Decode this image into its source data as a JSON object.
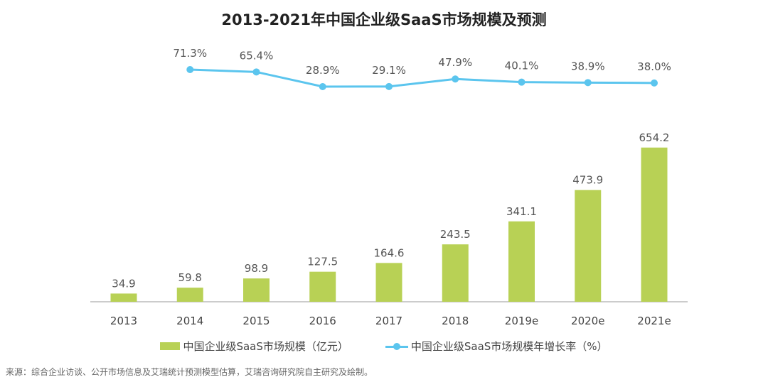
{
  "title": "2013-2021年中国企业级SaaS市场规模及预测",
  "chart_data": {
    "type": "bar+line",
    "title": "2013-2021年中国企业级SaaS市场规模及预测",
    "categories": [
      "2013",
      "2014",
      "2015",
      "2016",
      "2017",
      "2018",
      "2019e",
      "2020e",
      "2021e"
    ],
    "series": [
      {
        "name": "中国企业级SaaS市场规模（亿元）",
        "type": "bar",
        "color": "#b8d155",
        "values": [
          34.9,
          59.8,
          98.9,
          127.5,
          164.6,
          243.5,
          341.1,
          473.9,
          654.2
        ],
        "labels": [
          "34.9",
          "59.8",
          "98.9",
          "127.5",
          "164.6",
          "243.5",
          "341.1",
          "473.9",
          "654.2"
        ]
      },
      {
        "name": "中国企业级SaaS市场规模年增长率（%）",
        "type": "line",
        "color": "#5bc5ee",
        "values": [
          null,
          71.3,
          65.4,
          28.9,
          29.1,
          47.9,
          40.1,
          38.9,
          38.0
        ],
        "labels": [
          "",
          "71.3%",
          "65.4%",
          "28.9%",
          "29.1%",
          "47.9%",
          "40.1%",
          "38.9%",
          "38.0%"
        ]
      }
    ],
    "legend_position": "bottom",
    "grid": false
  },
  "legend": {
    "bar": "中国企业级SaaS市场规模（亿元）",
    "line": "中国企业级SaaS市场规模年增长率（%）"
  },
  "source": "来源：综合企业访谈、公开市场信息及艾瑞统计预测模型估算，艾瑞咨询研究院自主研究及绘制。"
}
